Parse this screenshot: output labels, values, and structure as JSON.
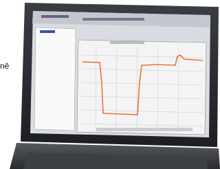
{
  "caption": "ně"
}
